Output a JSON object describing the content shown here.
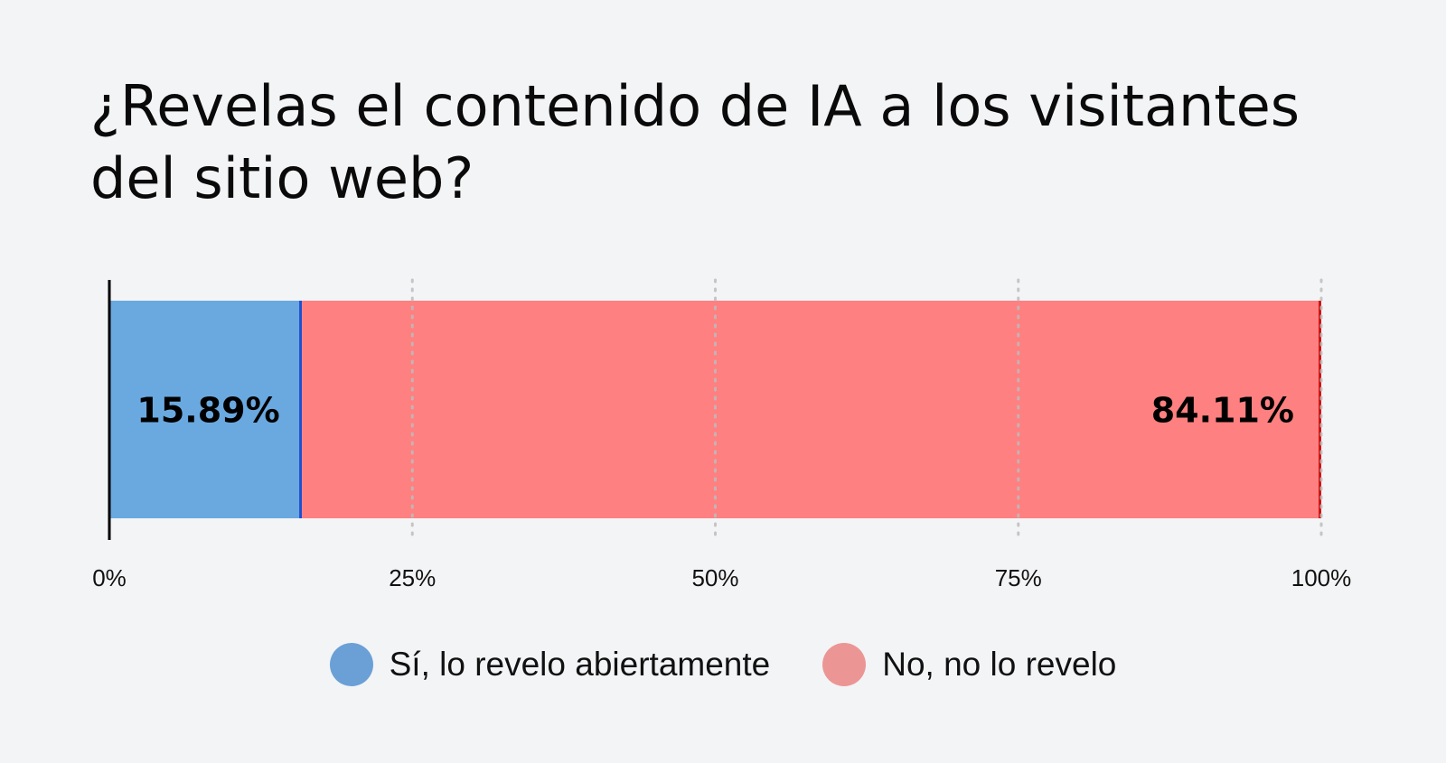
{
  "chart_data": {
    "type": "bar",
    "orientation": "horizontal",
    "stacked": true,
    "title": "¿Revelas el contenido de IA a los visitantes del sitio web?",
    "xlim": [
      0,
      100
    ],
    "xticks": [
      "0%",
      "25%",
      "50%",
      "75%",
      "100%"
    ],
    "grid": "dotted vertical",
    "legend_position": "bottom-center",
    "series": [
      {
        "name": "Sí, lo revelo abiertamente",
        "value": 15.89,
        "label": "15.89%",
        "color": "#6aa9e0",
        "edge_color": "#1f4fcf",
        "legend_color": "#6aa0d6"
      },
      {
        "name": "No, no lo revelo",
        "value": 84.11,
        "label": "84.11%",
        "color": "#ff8080",
        "edge_color": "#d01414",
        "legend_color": "#ec9595"
      }
    ]
  }
}
